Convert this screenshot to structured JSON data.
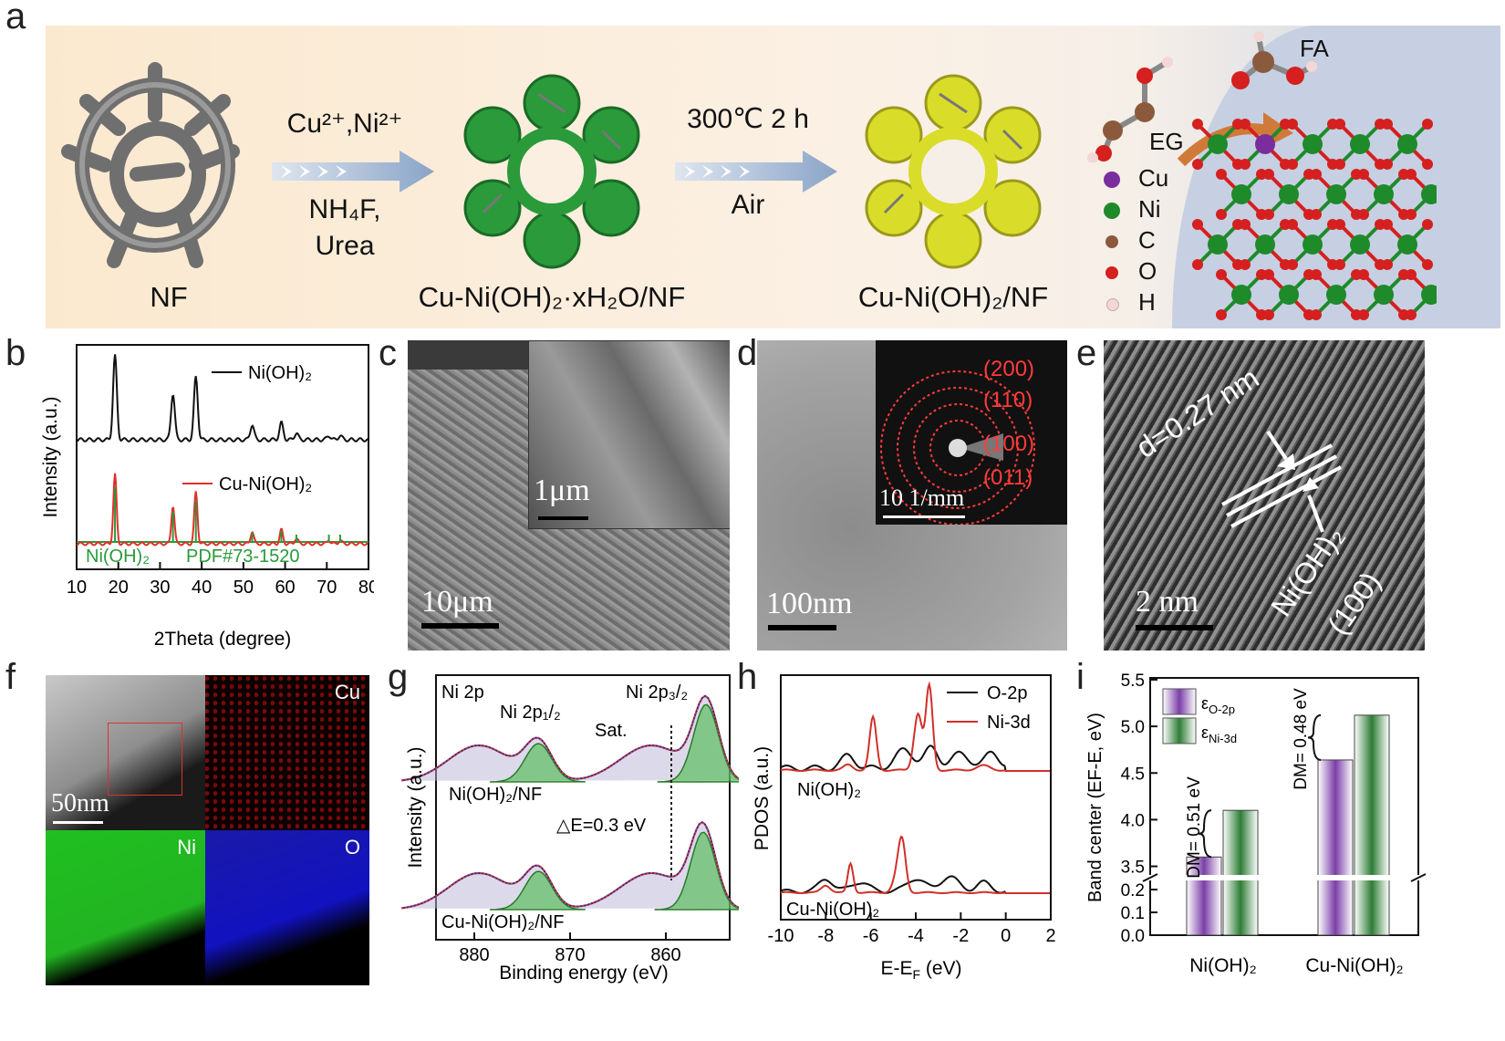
{
  "panel_labels": [
    "a",
    "b",
    "c",
    "d",
    "e",
    "f",
    "g",
    "h",
    "i"
  ],
  "panel_a": {
    "step1_top": "Cu²⁺,Ni²⁺",
    "step1_bottom1": "NH₄F,",
    "step1_bottom2": "Urea",
    "step2_top": "300℃ 2 h",
    "step2_bottom": "Air",
    "nf_label": "NF",
    "intermediate_label": "Cu-Ni(OH)₂·xH₂O/NF",
    "product_label": "Cu-Ni(OH)₂/NF",
    "eg_label": "EG",
    "fa_label": "FA",
    "legend": [
      {
        "symbol": "Cu",
        "color": "#7a2d9c"
      },
      {
        "symbol": "Ni",
        "color": "#1e8a2a"
      },
      {
        "symbol": "C",
        "color": "#8b5a3c"
      },
      {
        "symbol": "O",
        "color": "#d61f1f"
      },
      {
        "symbol": "H",
        "color": "#f3d6d6"
      }
    ]
  },
  "panel_b": {
    "ylabel": "Intensity (a.u.)",
    "xlabel": "2Theta (degree)",
    "xticks": [
      "10",
      "20",
      "30",
      "40",
      "50",
      "60",
      "70",
      "80"
    ],
    "legend_black": "Ni(OH)₂",
    "legend_red": "Cu-Ni(OH)₂",
    "ref_left": "Ni(OH)₂",
    "ref_right": "PDF#73-1520"
  },
  "panel_c": {
    "scale_main": "10μm",
    "scale_inset": "1μm"
  },
  "panel_d": {
    "scale_main": "100nm",
    "scale_inset": "10 1/mm",
    "rings": [
      "(200)",
      "(110)",
      "(100)",
      "(011)"
    ]
  },
  "panel_e": {
    "d_spacing": "d=0.27 nm",
    "phase": "Ni(OH)₂",
    "plane": "(100)",
    "scale": "2 nm"
  },
  "panel_f": {
    "scale": "50nm",
    "maps": [
      "Cu",
      "Ni",
      "O"
    ]
  },
  "panel_g": {
    "title": "Ni 2p",
    "ylabel": "Intensity (a.u.)",
    "xlabel": "Binding energy (eV)",
    "xticks": [
      "880",
      "870",
      "860"
    ],
    "peak1": "Ni 2p₁/₂",
    "peak2": "Ni 2p₃/₂",
    "sat": "Sat.",
    "sample1": "Ni(OH)₂/NF",
    "sample2": "Cu-Ni(OH)₂/NF",
    "shift": "△E=0.3 eV"
  },
  "panel_h": {
    "ylabel": "PDOS (a.u.)",
    "xlabel": "E-E",
    "xlabel_sub": "F",
    "xlabel_unit": " (eV)",
    "xticks": [
      "-10",
      "-8",
      "-6",
      "-4",
      "-2",
      "0",
      "2"
    ],
    "legend_black": "O-2p",
    "legend_red": "Ni-3d",
    "sample1": "Ni(OH)₂",
    "sample2": "Cu-Ni(OH)₂"
  },
  "chart_data": {
    "type": "bar",
    "title": "",
    "xlabel": "",
    "ylabel": "Band center (EF-E, eV)",
    "categories": [
      "Ni(OH)₂",
      "Cu-Ni(OH)₂"
    ],
    "series": [
      {
        "name": "εO-2p",
        "values": [
          3.6,
          4.64
        ],
        "color": "#8a4fb0"
      },
      {
        "name": "εNi-3d",
        "values": [
          4.1,
          5.12
        ],
        "color": "#3f8a45"
      }
    ],
    "yticks_upper": [
      "3.5",
      "4.0",
      "4.5",
      "5.0",
      "5.5"
    ],
    "yticks_lower": [
      "0.0",
      "0.1",
      "0.2"
    ],
    "ylim": [
      0,
      5.5
    ],
    "annotations": [
      "DM= 0.51 eV",
      "DM= 0.48 eV"
    ],
    "legend_position": "top-left"
  }
}
